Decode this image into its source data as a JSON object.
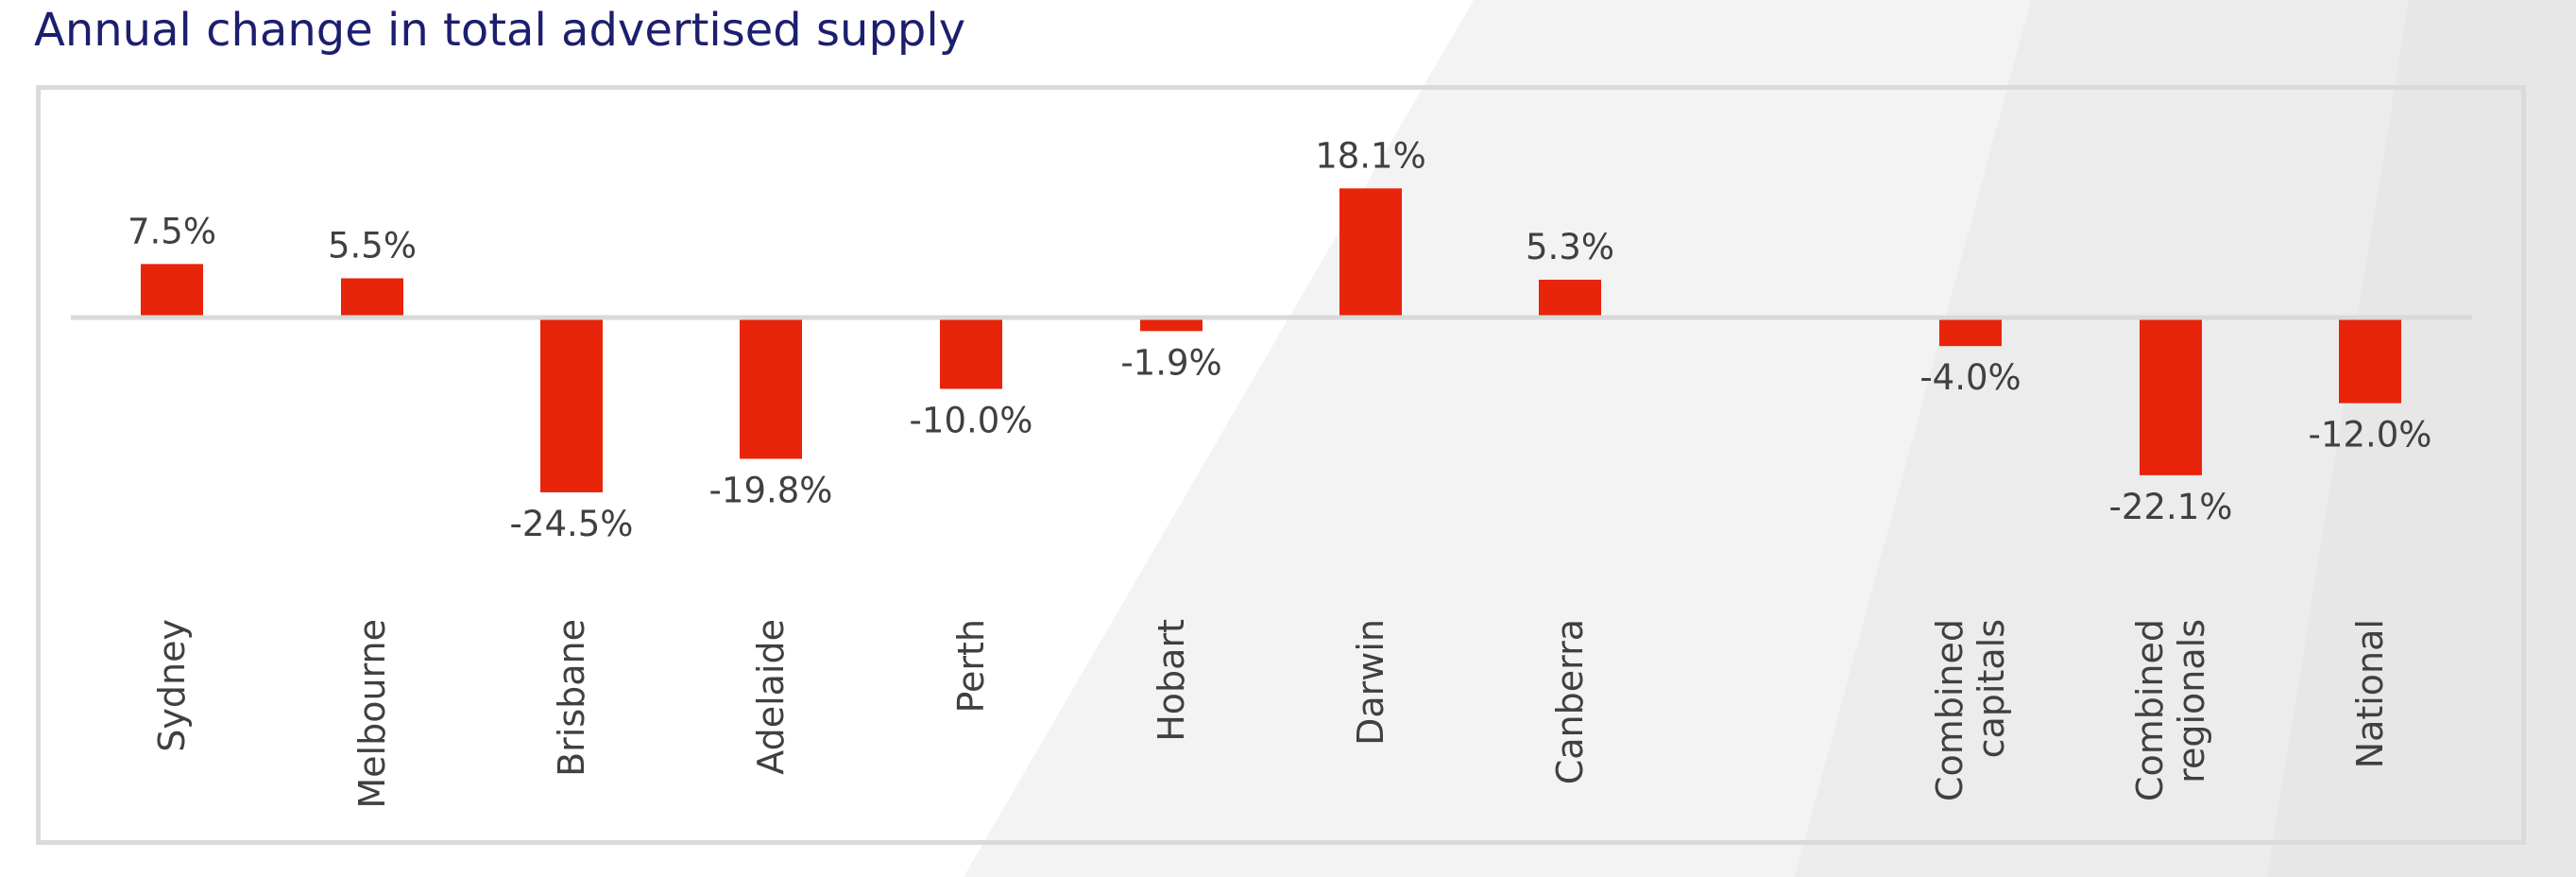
{
  "page": {
    "title": "Annual change in total advertised supply"
  },
  "colors": {
    "title": "#1c1f6e",
    "bar": "#e8240a",
    "text": "#404040",
    "axis": "#d9d9d9",
    "frame": "#dadada"
  },
  "chart_data": {
    "type": "bar",
    "title": "",
    "xlabel": "",
    "ylabel": "",
    "categories": [
      [
        "Sydney"
      ],
      [
        "Melbourne"
      ],
      [
        "Brisbane"
      ],
      [
        "Adelaide"
      ],
      [
        "Perth"
      ],
      [
        "Hobart"
      ],
      [
        "Darwin"
      ],
      [
        "Canberra"
      ],
      [
        "Combined",
        "capitals"
      ],
      [
        "Combined",
        "regionals"
      ],
      [
        "National"
      ]
    ],
    "values": [
      7.5,
      5.5,
      -24.5,
      -19.8,
      -10.0,
      -1.9,
      18.1,
      5.3,
      -4.0,
      -22.1,
      -12.0
    ],
    "data_labels": [
      "7.5%",
      "5.5%",
      "-24.5%",
      "-19.8%",
      "-10.0%",
      "-1.9%",
      "18.1%",
      "5.3%",
      "-4.0%",
      "-22.1%",
      "-12.0%"
    ],
    "unit": "%",
    "grid": false,
    "legend": "none",
    "category_labels_rotated": true
  }
}
